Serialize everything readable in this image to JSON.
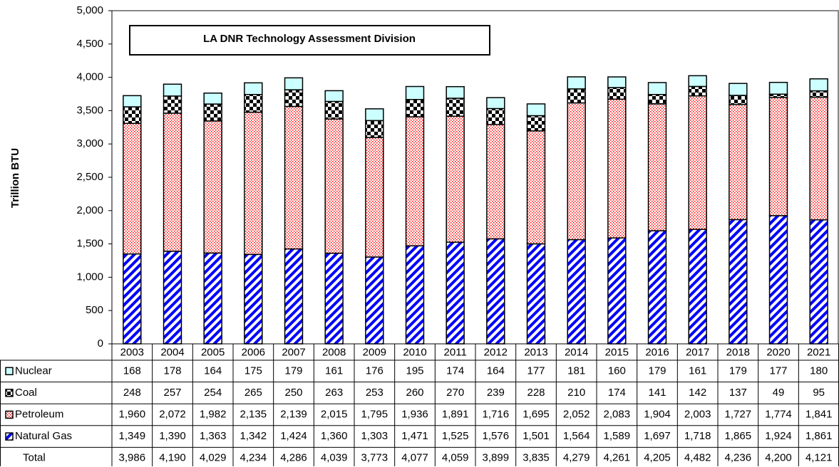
{
  "chart_data": {
    "type": "stacked_bar",
    "title": "LA DNR Technology Assessment Division",
    "y_label": "Trillion BTU",
    "categories": [
      "2003",
      "2004",
      "2005",
      "2006",
      "2007",
      "2008",
      "2009",
      "2010",
      "2011",
      "2012",
      "2013",
      "2014",
      "2015",
      "2016",
      "2017",
      "2018",
      "2020",
      "2021"
    ],
    "ylim": [
      0,
      5000
    ],
    "yticks": [
      0,
      500,
      {
        "value": 1000,
        "label": "1,000"
      },
      {
        "value": 1500,
        "label": "1,500"
      },
      {
        "value": 2000,
        "label": "2,000"
      },
      {
        "value": 2500,
        "label": "2,500"
      },
      {
        "value": 3000,
        "label": "3,000"
      },
      {
        "value": 3500,
        "label": "3,500"
      },
      {
        "value": 4000,
        "label": "4,000"
      },
      {
        "value": 4500,
        "label": "4,500"
      },
      {
        "value": 5000,
        "label": "5,000"
      }
    ],
    "series": [
      {
        "name": "Natural Gas",
        "color": "#0000ff",
        "values": [
          1349,
          1390,
          1363,
          1342,
          1424,
          1360,
          1303,
          1471,
          1525,
          1576,
          1501,
          1564,
          1589,
          1697,
          1718,
          1865,
          1924,
          1861
        ],
        "value_labels": [
          "1,349",
          "1,390",
          "1,363",
          "1,342",
          "1,424",
          "1,360",
          "1,303",
          "1,471",
          "1,525",
          "1,576",
          "1,501",
          "1,564",
          "1,589",
          "1,697",
          "1,718",
          "1,865",
          "1,924",
          "1,861"
        ]
      },
      {
        "name": "Petroleum",
        "color": "#ff0000",
        "values": [
          1960,
          2072,
          1982,
          2135,
          2139,
          2015,
          1795,
          1936,
          1891,
          1716,
          1695,
          2052,
          2083,
          1904,
          2003,
          1727,
          1774,
          1841
        ],
        "value_labels": [
          "1,960",
          "2,072",
          "1,982",
          "2,135",
          "2,139",
          "2,015",
          "1,795",
          "1,936",
          "1,891",
          "1,716",
          "1,695",
          "2,052",
          "2,083",
          "1,904",
          "2,003",
          "1,727",
          "1,774",
          "1,841"
        ]
      },
      {
        "name": "Coal",
        "color": "#000000",
        "values": [
          248,
          257,
          254,
          265,
          250,
          263,
          253,
          260,
          270,
          239,
          228,
          210,
          174,
          141,
          142,
          137,
          49,
          95
        ]
      },
      {
        "name": "Nuclear",
        "color": "#ccffff",
        "values": [
          168,
          178,
          164,
          175,
          179,
          161,
          176,
          195,
          174,
          164,
          177,
          181,
          160,
          179,
          161,
          179,
          177,
          180
        ]
      }
    ],
    "total": {
      "name": "Total",
      "values": [
        3986,
        4190,
        4029,
        4234,
        4286,
        4039,
        3773,
        4077,
        4059,
        3899,
        3835,
        4279,
        4261,
        4205,
        4482,
        4236,
        4200,
        4121
      ],
      "value_labels": [
        "3,986",
        "4,190",
        "4,029",
        "4,234",
        "4,286",
        "4,039",
        "3,773",
        "4,077",
        "4,059",
        "3,899",
        "3,835",
        "4,279",
        "4,261",
        "4,205",
        "4,482",
        "4,236",
        "4,200",
        "4,121"
      ]
    }
  }
}
